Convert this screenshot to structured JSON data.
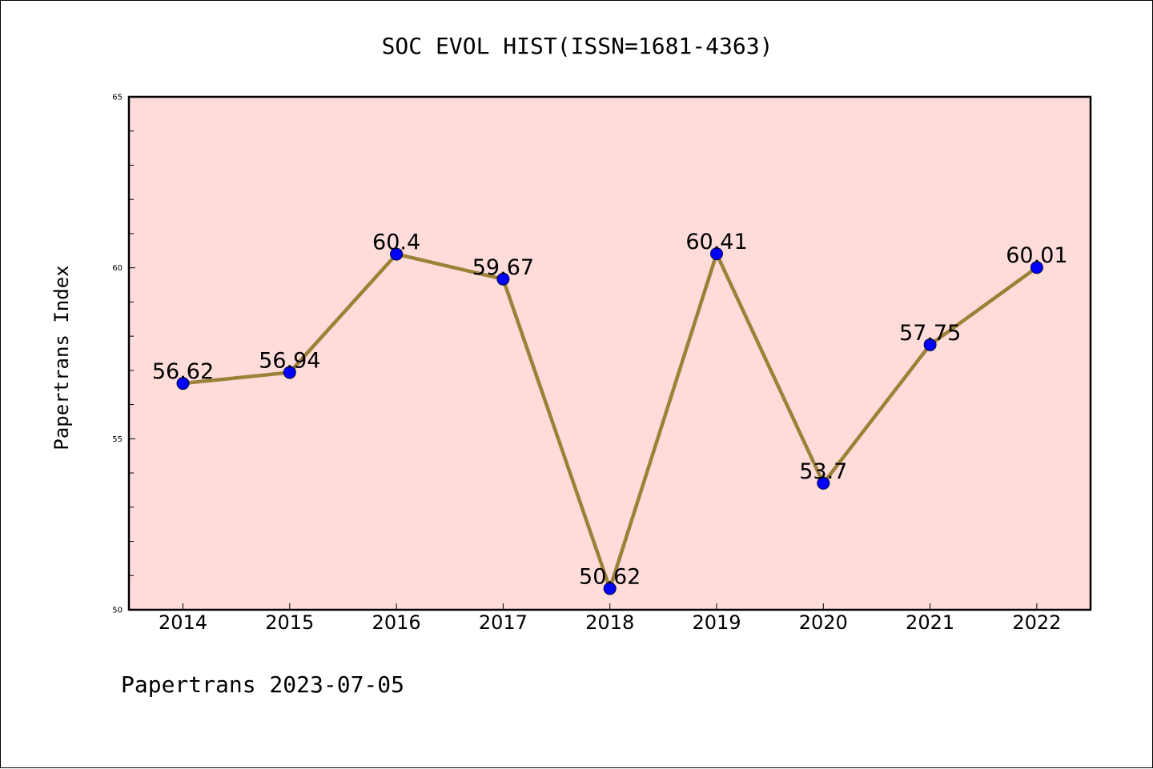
{
  "chart_data": {
    "type": "line",
    "title": "SOC EVOL HIST(ISSN=1681-4363)",
    "xlabel": "",
    "ylabel": "Papertrans Index",
    "footer": "Papertrans 2023-07-05",
    "categories": [
      "2014",
      "2015",
      "2016",
      "2017",
      "2018",
      "2019",
      "2020",
      "2021",
      "2022"
    ],
    "values": [
      56.62,
      56.94,
      60.4,
      59.67,
      50.62,
      60.41,
      53.7,
      57.75,
      60.01
    ],
    "data_labels": [
      "56.62",
      "56.94",
      "60.4",
      "59.67",
      "50.62",
      "60.41",
      "53.7",
      "57.75",
      "60.01"
    ],
    "ylim": [
      50,
      65
    ],
    "yticks": [
      50,
      55,
      60,
      65
    ],
    "ytick_labels": [
      "50",
      "55",
      "60",
      "65"
    ],
    "grid": false,
    "colors": {
      "plot_background": "#FDDCDA",
      "line": "#9C8138",
      "marker": "#0000FF",
      "axis": "#000000"
    }
  }
}
